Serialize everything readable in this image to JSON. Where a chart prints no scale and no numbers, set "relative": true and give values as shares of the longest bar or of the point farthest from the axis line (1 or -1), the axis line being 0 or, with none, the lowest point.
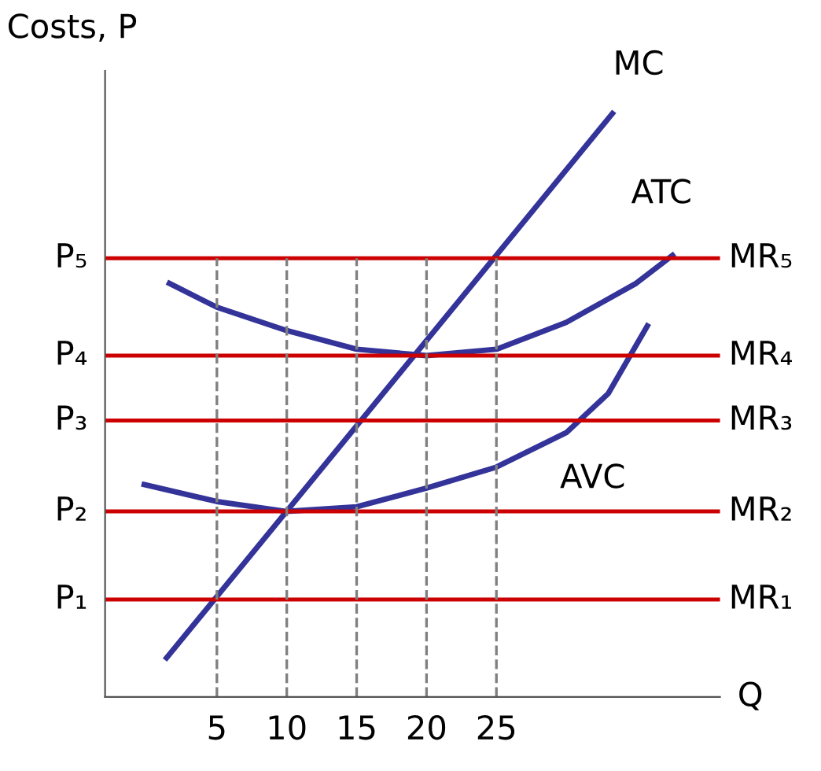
{
  "chart_data": {
    "type": "line",
    "relative": true,
    "xlabel": "Q",
    "ylabel": "Costs, P",
    "xlim": [
      -3,
      41
    ],
    "xticks": [
      5,
      10,
      15,
      20,
      25
    ],
    "annotations": [
      "P₁",
      "P₂",
      "P₃",
      "P₄",
      "P₅"
    ],
    "series": [
      {
        "name": "MC",
        "color": "#333399",
        "x": [
          1.4,
          33.3
        ],
        "values": [
          0.067,
          1
        ]
      },
      {
        "name": "ATC",
        "color": "#333399",
        "x": [
          1.6,
          5,
          10,
          15,
          20,
          25,
          30,
          35,
          37.6
        ],
        "values": [
          0.709,
          0.668,
          0.628,
          0.596,
          0.585,
          0.596,
          0.642,
          0.709,
          0.757
        ]
      },
      {
        "name": "AVC",
        "color": "#333399",
        "x": [
          -0.2,
          5,
          10,
          15,
          20,
          25,
          30,
          33,
          35.8
        ],
        "values": [
          0.364,
          0.335,
          0.318,
          0.326,
          0.358,
          0.394,
          0.453,
          0.52,
          0.636
        ]
      }
    ],
    "ref_lines": [
      {
        "axis": "y",
        "value": 0.167,
        "label": "MR₁",
        "color": "#cc0000"
      },
      {
        "axis": "y",
        "value": 0.318,
        "label": "MR₂",
        "color": "#cc0000"
      },
      {
        "axis": "y",
        "value": 0.474,
        "label": "MR₃",
        "color": "#cc0000"
      },
      {
        "axis": "y",
        "value": 0.585,
        "label": "MR₄",
        "color": "#cc0000"
      },
      {
        "axis": "y",
        "value": 0.752,
        "label": "MR₅",
        "color": "#cc0000"
      },
      {
        "axis": "x",
        "value": 5,
        "color": "#808080",
        "line_style": "dashed"
      },
      {
        "axis": "x",
        "value": 10,
        "color": "#808080",
        "line_style": "dashed"
      },
      {
        "axis": "x",
        "value": 15,
        "color": "#808080",
        "line_style": "dashed"
      },
      {
        "axis": "x",
        "value": 20,
        "color": "#808080",
        "line_style": "dashed"
      },
      {
        "axis": "x",
        "value": 25,
        "color": "#808080",
        "line_style": "dashed"
      }
    ],
    "grid": false,
    "legend": false,
    "marker": "none",
    "line_style": "solid"
  }
}
